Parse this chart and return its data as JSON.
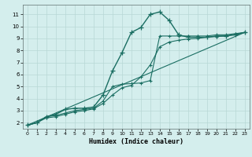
{
  "xlabel": "Humidex (Indice chaleur)",
  "bg_color": "#d4eeed",
  "grid_color": "#b8d8d5",
  "line_color": "#1a6e62",
  "xlim": [
    -0.5,
    23.5
  ],
  "ylim": [
    1.5,
    11.8
  ],
  "xticks": [
    0,
    1,
    2,
    3,
    4,
    5,
    6,
    7,
    8,
    9,
    10,
    11,
    12,
    13,
    14,
    15,
    16,
    17,
    18,
    19,
    20,
    21,
    22,
    23
  ],
  "yticks": [
    2,
    3,
    4,
    5,
    6,
    7,
    8,
    9,
    10,
    11
  ],
  "curve1_x": [
    0,
    1,
    2,
    3,
    4,
    5,
    6,
    7,
    8,
    9,
    10,
    11,
    12,
    13,
    14,
    15,
    16,
    17,
    18,
    19,
    20,
    21,
    22,
    23
  ],
  "curve1_y": [
    1.8,
    2.0,
    2.5,
    2.7,
    3.1,
    3.2,
    3.2,
    3.3,
    4.3,
    6.3,
    7.8,
    9.5,
    9.9,
    11.0,
    11.2,
    10.5,
    9.3,
    9.1,
    9.1,
    9.1,
    9.2,
    9.2,
    9.3,
    9.5
  ],
  "curve2_x": [
    0,
    1,
    2,
    3,
    4,
    5,
    6,
    7,
    8,
    9,
    10,
    11,
    12,
    13,
    14,
    15,
    16,
    17,
    18,
    19,
    20,
    21,
    22,
    23
  ],
  "curve2_y": [
    1.8,
    2.0,
    2.5,
    2.6,
    2.8,
    3.0,
    3.1,
    3.2,
    3.8,
    5.0,
    5.2,
    5.25,
    5.3,
    5.5,
    9.2,
    9.2,
    9.2,
    9.2,
    9.2,
    9.2,
    9.3,
    9.3,
    9.4,
    9.5
  ],
  "curve3_x": [
    0,
    1,
    2,
    3,
    4,
    5,
    6,
    7,
    8,
    9,
    10,
    11,
    12,
    13,
    14,
    15,
    16,
    17,
    18,
    19,
    20,
    21,
    22,
    23
  ],
  "curve3_y": [
    1.8,
    2.0,
    2.4,
    2.5,
    2.7,
    2.9,
    3.0,
    3.15,
    3.6,
    4.3,
    4.9,
    5.1,
    5.8,
    6.8,
    8.3,
    8.7,
    8.85,
    8.95,
    9.0,
    9.1,
    9.15,
    9.2,
    9.35,
    9.5
  ],
  "line_x": [
    0,
    23
  ],
  "line_y": [
    1.8,
    9.5
  ]
}
